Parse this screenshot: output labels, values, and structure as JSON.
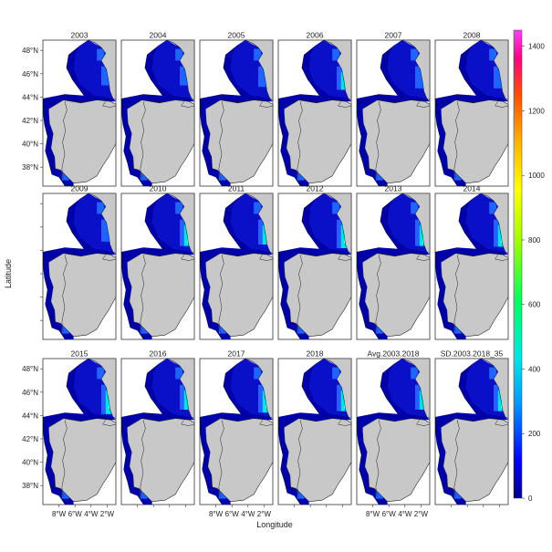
{
  "figure": {
    "ylabel": "Latitude",
    "xlabel": "Longitude",
    "panels": [
      "2003",
      "2004",
      "2005",
      "2006",
      "2007",
      "2008",
      "2009",
      "2010",
      "2011",
      "2012",
      "2013",
      "2014",
      "2015",
      "2016",
      "2017",
      "2018",
      "Avg.2003.2018",
      "SD.2003.2018_35"
    ],
    "lat_ticks": [
      "48°N",
      "46°N",
      "44°N",
      "42°N",
      "40°N",
      "38°N"
    ],
    "lon_ticks": [
      "8°W",
      "6°W",
      "4°W",
      "2°W"
    ],
    "colorbar": {
      "ticks": [
        "1400",
        "1200",
        "1000",
        "800",
        "600",
        "400",
        "200",
        "0"
      ],
      "min": 0,
      "max": 1450
    },
    "colors": {
      "land": "#c8c8c8",
      "low": "#0000a8",
      "mid": "#1e64ff",
      "high": "#00e6e6",
      "peak": "#ffff00"
    }
  }
}
